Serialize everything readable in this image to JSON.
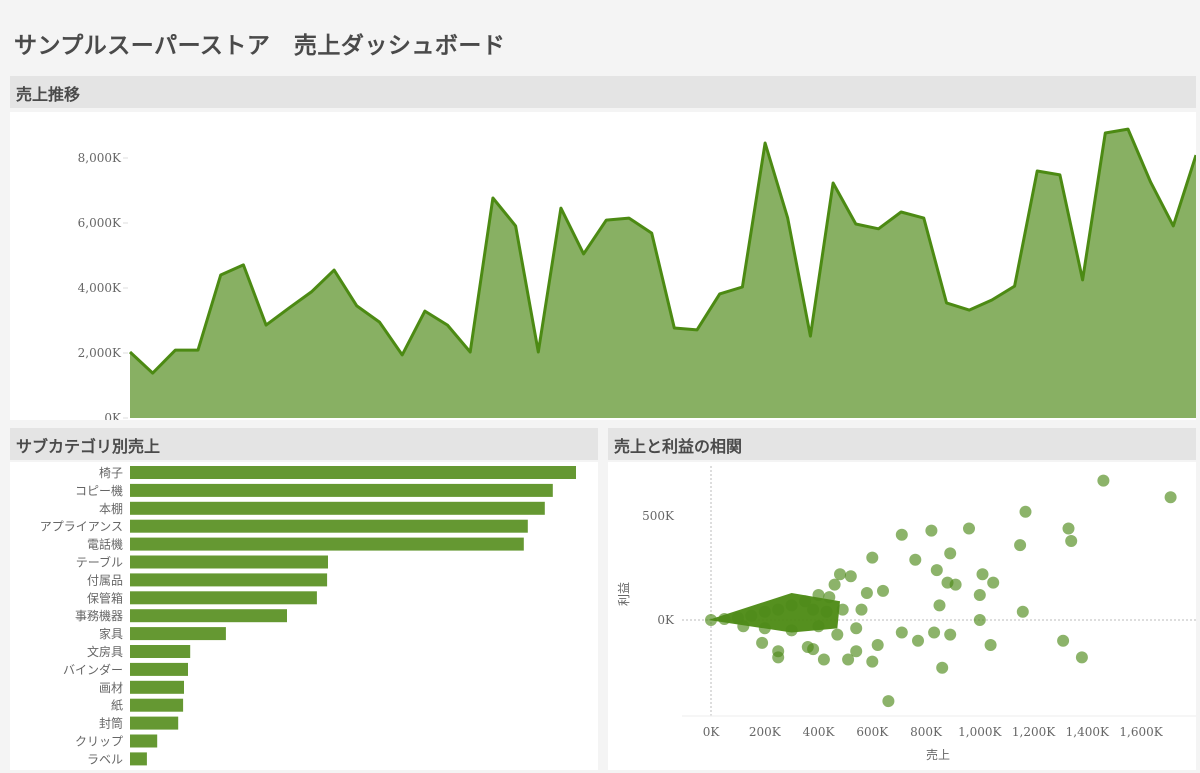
{
  "header": {
    "title": "サンプルスーパーストア　売上ダッシュボード"
  },
  "colors": {
    "accent": "#4c8a13",
    "area_fill": "#88b063",
    "bar_fill": "#659832",
    "dot_fill": "#4f8a1a",
    "panel_header_bg": "#e4e4e4",
    "page_bg": "#f4f4f4"
  },
  "panels": {
    "trend": {
      "title": "売上推移"
    },
    "subcategory": {
      "title": "サブカテゴリ別売上"
    },
    "correlation": {
      "title": "売上と利益の相関"
    }
  },
  "chart_data": [
    {
      "id": "trend",
      "type": "area",
      "title": "売上推移",
      "xlabel": "",
      "ylabel": "",
      "ylim": [
        0,
        9000
      ],
      "yticks": [
        "0K",
        "2,000K",
        "4,000K",
        "6,000K",
        "8,000K"
      ],
      "ytick_values": [
        0,
        2000,
        4000,
        6000,
        8000
      ],
      "unit": "K",
      "grid": false,
      "values": [
        2030,
        1380,
        2090,
        2090,
        4400,
        4710,
        2860,
        3380,
        3880,
        4550,
        3450,
        2950,
        1940,
        3290,
        2860,
        2030,
        6770,
        5910,
        2030,
        6460,
        5050,
        6090,
        6150,
        5690,
        2770,
        2710,
        3820,
        4030,
        8460,
        6150,
        2520,
        7230,
        5970,
        5820,
        6340,
        6150,
        3540,
        3320,
        3630,
        4060,
        7600,
        7480,
        4250,
        8770,
        8890,
        7260,
        5910,
        8090
      ]
    },
    {
      "id": "subcategory",
      "type": "bar",
      "orientation": "horizontal",
      "title": "サブカテゴリ別売上",
      "categories": [
        "椅子",
        "コピー機",
        "本棚",
        "アプライアンス",
        "電話機",
        "テーブル",
        "付属品",
        "保管箱",
        "事務機器",
        "家具",
        "文房具",
        "バインダー",
        "画材",
        "紙",
        "封筒",
        "クリップ",
        "ラベル"
      ],
      "values": [
        100,
        94.8,
        93.0,
        89.2,
        88.3,
        44.4,
        44.2,
        41.9,
        35.2,
        21.5,
        13.5,
        13.0,
        12.1,
        11.9,
        10.8,
        6.1,
        3.8
      ],
      "value_note": "relative length (% of 椅子); no value axis shown"
    },
    {
      "id": "correlation",
      "type": "scatter",
      "title": "売上と利益の相関",
      "xlabel": "売上",
      "ylabel": "利益",
      "xticks": [
        "0K",
        "200K",
        "400K",
        "600K",
        "800K",
        "1,000K",
        "1,200K",
        "1,400K",
        "1,600K"
      ],
      "xtick_values": [
        0,
        200,
        400,
        600,
        800,
        1000,
        1200,
        1400,
        1600
      ],
      "yticks": [
        "0K",
        "500K"
      ],
      "ytick_values": [
        0,
        500
      ],
      "xlim": [
        -80,
        1800
      ],
      "ylim": [
        -420,
        680
      ],
      "reference_lines": {
        "x": 0,
        "y": 0
      },
      "points": [
        [
          1460,
          670
        ],
        [
          1710,
          590
        ],
        [
          1170,
          520
        ],
        [
          960,
          440
        ],
        [
          1330,
          440
        ],
        [
          1340,
          380
        ],
        [
          1150,
          360
        ],
        [
          820,
          430
        ],
        [
          890,
          320
        ],
        [
          710,
          410
        ],
        [
          760,
          290
        ],
        [
          840,
          240
        ],
        [
          880,
          180
        ],
        [
          910,
          170
        ],
        [
          1010,
          220
        ],
        [
          1050,
          180
        ],
        [
          1000,
          120
        ],
        [
          850,
          70
        ],
        [
          1160,
          40
        ],
        [
          1000,
          0
        ],
        [
          830,
          -60
        ],
        [
          890,
          -70
        ],
        [
          1040,
          -120
        ],
        [
          1310,
          -100
        ],
        [
          1380,
          -180
        ],
        [
          860,
          -230
        ],
        [
          770,
          -100
        ],
        [
          710,
          -60
        ],
        [
          620,
          -120
        ],
        [
          600,
          -200
        ],
        [
          540,
          -150
        ],
        [
          510,
          -190
        ],
        [
          420,
          -190
        ],
        [
          380,
          -140
        ],
        [
          360,
          -130
        ],
        [
          250,
          -150
        ],
        [
          250,
          -180
        ],
        [
          190,
          -110
        ],
        [
          660,
          -390
        ],
        [
          600,
          300
        ],
        [
          480,
          220
        ],
        [
          520,
          210
        ],
        [
          640,
          140
        ],
        [
          580,
          130
        ],
        [
          560,
          50
        ],
        [
          490,
          50
        ],
        [
          430,
          40
        ],
        [
          460,
          170
        ],
        [
          400,
          120
        ],
        [
          350,
          90
        ],
        [
          300,
          70
        ],
        [
          250,
          50
        ],
        [
          200,
          40
        ],
        [
          150,
          20
        ],
        [
          100,
          10
        ],
        [
          50,
          5
        ],
        [
          0,
          0
        ],
        [
          300,
          -50
        ],
        [
          200,
          -40
        ],
        [
          120,
          -30
        ],
        [
          400,
          -30
        ],
        [
          470,
          -70
        ],
        [
          540,
          -40
        ],
        [
          380,
          50
        ],
        [
          440,
          110
        ]
      ],
      "note": "dense cluster of points between 0K–500K sales; individual positions approximate"
    }
  ]
}
